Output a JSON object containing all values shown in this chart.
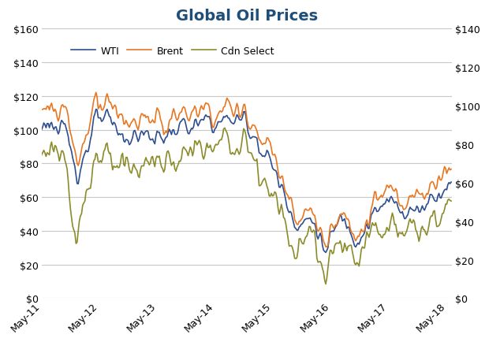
{
  "title": "Global Oil Prices",
  "title_color": "#1F4E79",
  "title_fontsize": 14,
  "wti_color": "#2E4E8F",
  "brent_color": "#E87722",
  "cdn_color": "#8B8B2B",
  "line_width": 1.2,
  "left_ylim": [
    0,
    160
  ],
  "right_ylim": [
    0,
    140
  ],
  "left_yticks": [
    0,
    20,
    40,
    60,
    80,
    100,
    120,
    140,
    160
  ],
  "right_yticks": [
    0,
    20,
    40,
    60,
    80,
    100,
    120,
    140
  ],
  "left_yticklabels": [
    "$0",
    "$20",
    "$40",
    "$60",
    "$80",
    "$100",
    "$120",
    "$140",
    "$160"
  ],
  "right_yticklabels": [
    "$0",
    "$20",
    "$40",
    "$60",
    "$80",
    "$100",
    "$120",
    "$140"
  ],
  "xtick_labels": [
    "May-11",
    "May-12",
    "May-13",
    "May-14",
    "May-15",
    "May-16",
    "May-17",
    "May-18"
  ],
  "legend_labels": [
    "WTI",
    "Brent",
    "Cdn Select"
  ],
  "background_color": "#FFFFFF",
  "grid_color": "#C8C8C8",
  "tick_fontsize": 9,
  "legend_fontsize": 9,
  "figsize": [
    6.2,
    4.35
  ],
  "dpi": 100
}
